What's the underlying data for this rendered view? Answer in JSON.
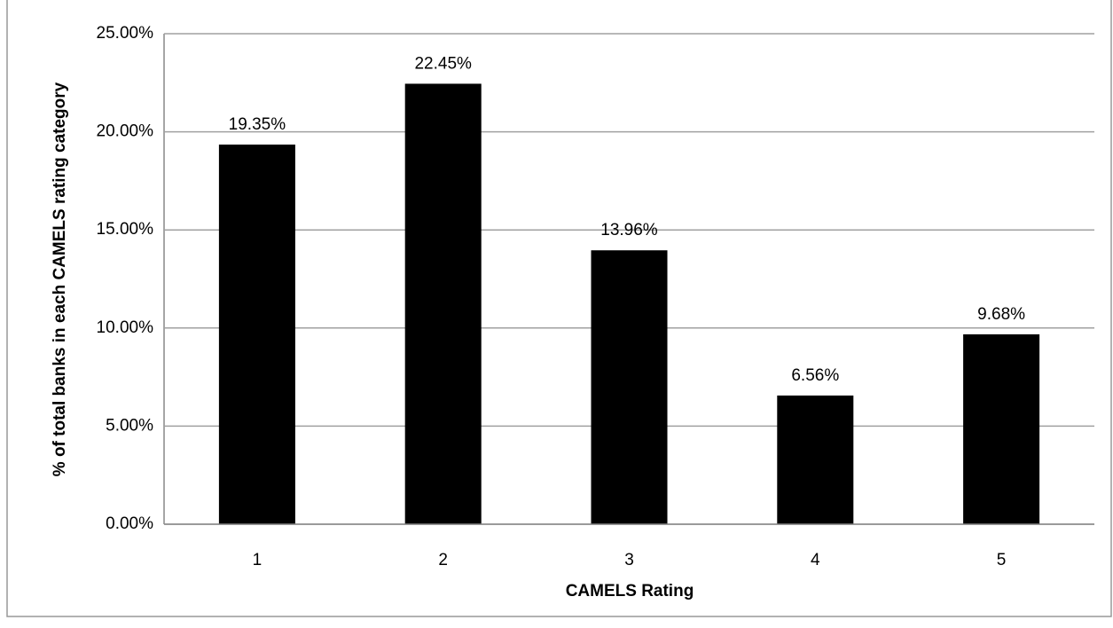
{
  "chart_data": {
    "type": "bar",
    "x_label": "CAMELS Rating",
    "y_label": "% of total banks in each CAMELS rating category",
    "categories": [
      "1",
      "2",
      "3",
      "4",
      "5"
    ],
    "values": [
      19.35,
      22.45,
      13.96,
      6.56,
      9.68
    ],
    "value_labels": [
      "19.35%",
      "22.45%",
      "13.96%",
      "6.56%",
      "9.68%"
    ],
    "color": "#000000",
    "ylim": [
      0,
      25
    ],
    "yticks": [
      {
        "value": 0,
        "label": "0.00%"
      },
      {
        "value": 5,
        "label": "5.00%"
      },
      {
        "value": 10,
        "label": "10.00%"
      },
      {
        "value": 15,
        "label": "15.00%"
      },
      {
        "value": 20,
        "label": "20.00%"
      },
      {
        "value": 25,
        "label": "25.00%"
      }
    ],
    "grid": true
  }
}
